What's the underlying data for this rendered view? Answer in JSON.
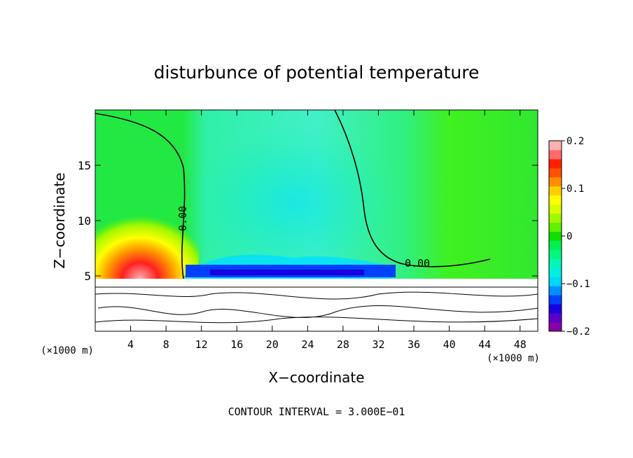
{
  "chart_data": {
    "type": "heatmap",
    "title": "disturbunce of potential temperature",
    "xlabel": "X−coordinate",
    "ylabel": "Z−coordinate",
    "x_unit_left": "(×1000 m)",
    "x_unit_right": "(×1000 m)",
    "footer": "CONTOUR INTERVAL = 3.000E−01",
    "xlim": [
      0,
      50
    ],
    "ylim": [
      0,
      20
    ],
    "x_ticks": [
      4,
      8,
      12,
      16,
      20,
      24,
      28,
      32,
      36,
      40,
      44,
      48
    ],
    "y_ticks": [
      5,
      10,
      15
    ],
    "contour_labels": [
      {
        "text": "0.00",
        "x": 9.8,
        "z": 10.0,
        "rotation": -90
      },
      {
        "text": "0.00",
        "x": 37.5,
        "z": 6.0,
        "rotation": 0
      }
    ],
    "colorbar": {
      "min": -0.2,
      "max": 0.2,
      "tick_labels": [
        "0.2",
        "0.1",
        "0",
        "−0.1",
        "−0.2"
      ],
      "tick_values": [
        0.2,
        0.1,
        0,
        -0.1,
        -0.2
      ],
      "colors": [
        "#8a00a8",
        "#5a00c8",
        "#1a00e0",
        "#0040ff",
        "#0090ff",
        "#00d8ff",
        "#00f0e0",
        "#00f8b8",
        "#00f880",
        "#00f050",
        "#10e000",
        "#60f000",
        "#a0f800",
        "#d8ff00",
        "#ffff00",
        "#ffd000",
        "#ff9000",
        "#ff5000",
        "#ff2000",
        "#ff6a6a",
        "#ffb0b0"
      ]
    }
  }
}
